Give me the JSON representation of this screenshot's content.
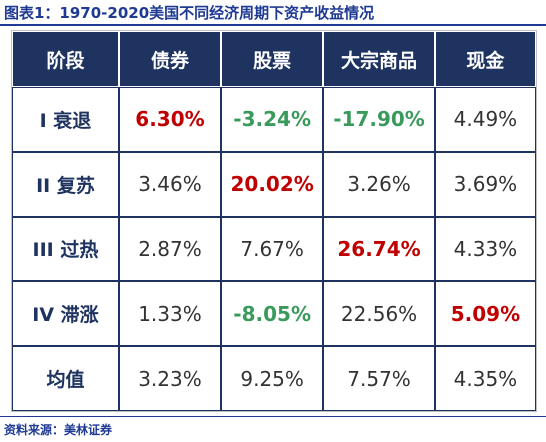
{
  "title": "图表1：1970-2020美国不同经济周期下资产收益情况",
  "source": "资料来源：美林证券",
  "colors": {
    "header_bg": "#1e3360",
    "positive_highlight": "#c00000",
    "negative_highlight": "#3a9a5b",
    "accent": "#1f3a93"
  },
  "table": {
    "headers": [
      "阶段",
      "债券",
      "股票",
      "大宗商品",
      "现金"
    ],
    "rows": [
      {
        "label": "I 衰退",
        "cells": [
          "6.30%",
          "-3.24%",
          "-17.90%",
          "4.49%"
        ]
      },
      {
        "label": "II 复苏",
        "cells": [
          "3.46%",
          "20.02%",
          "3.26%",
          "3.69%"
        ]
      },
      {
        "label": "III 过热",
        "cells": [
          "2.87%",
          "7.67%",
          "26.74%",
          "4.33%"
        ]
      },
      {
        "label": "IV 滞涨",
        "cells": [
          "1.33%",
          "-8.05%",
          "22.56%",
          "5.09%"
        ]
      },
      {
        "label": "均值",
        "cells": [
          "3.23%",
          "9.25%",
          "7.57%",
          "4.35%"
        ]
      }
    ]
  }
}
